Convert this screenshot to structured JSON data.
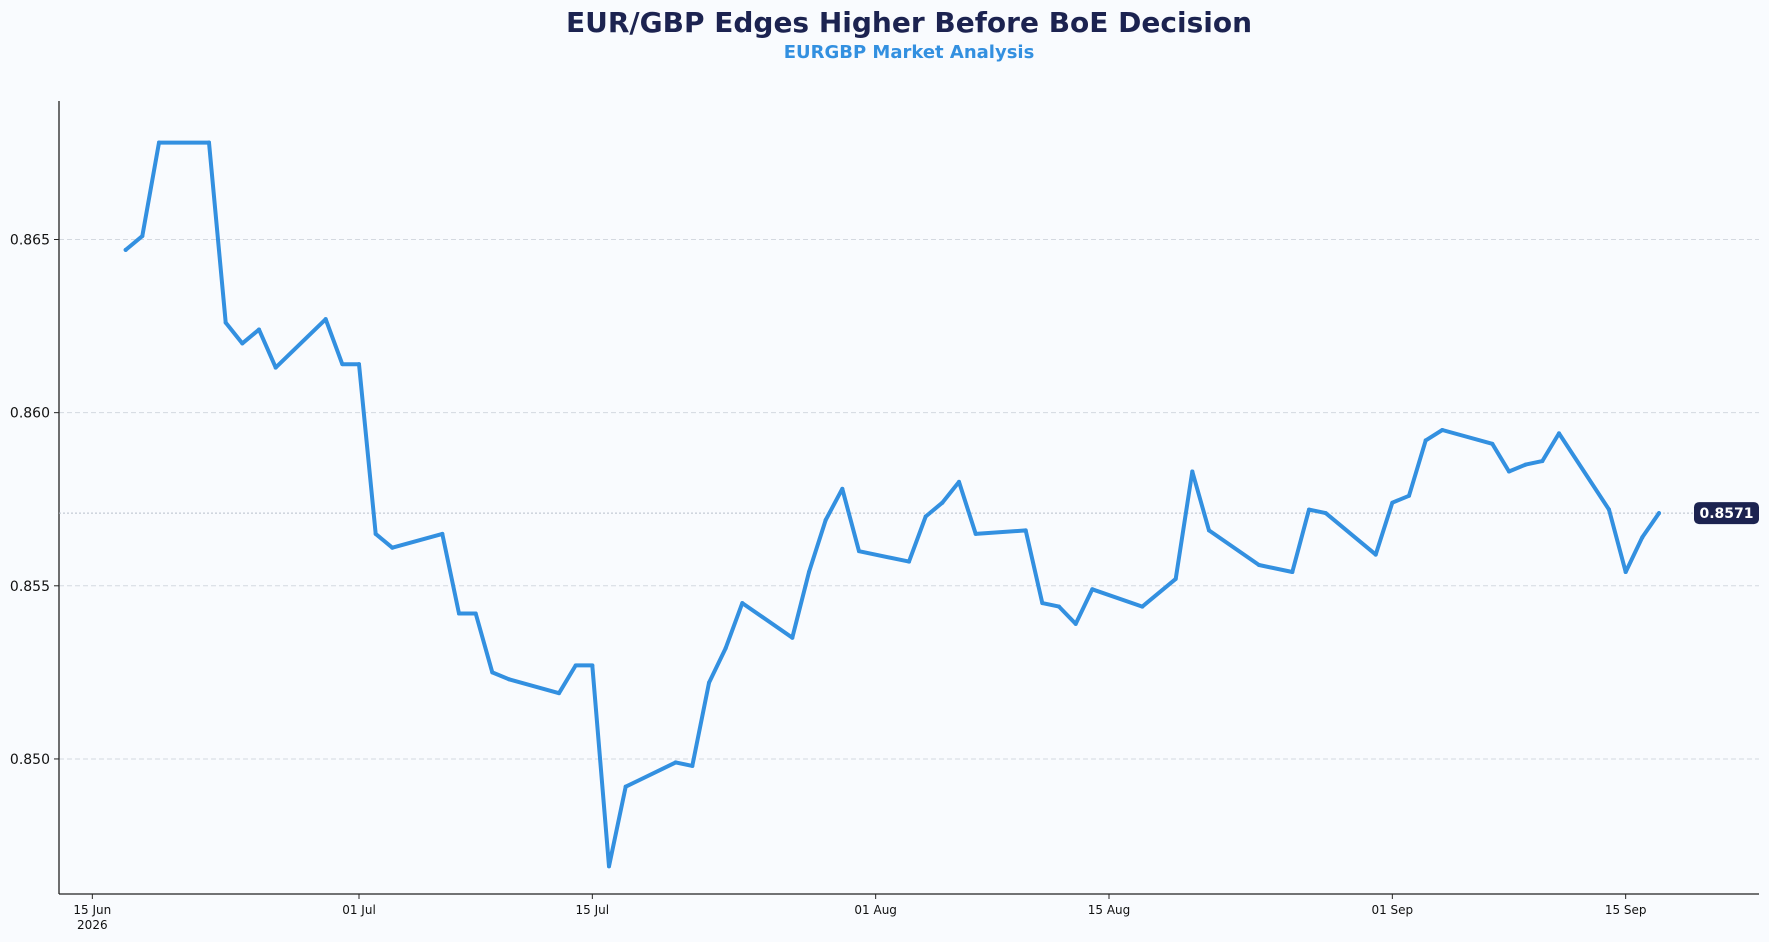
{
  "colors": {
    "background": "#f9fbfe",
    "title": "#1c2350",
    "subtitle": "#3390e0",
    "line": "#3390e0",
    "grid": "#d4d9e0",
    "axis": "#222222",
    "badge_bg": "#1c2350"
  },
  "chart_data": {
    "type": "line",
    "title": "EUR/GBP Edges Higher Before BoE Decision",
    "subtitle": "EURGBP Market Analysis",
    "xlabel": "",
    "ylabel": "",
    "grid": true,
    "x_range": [
      "2026-06-13",
      "2026-09-23"
    ],
    "ylim": [
      0.8461,
      0.869
    ],
    "yticks": [
      0.85,
      0.855,
      0.86,
      0.865
    ],
    "ytick_labels": [
      "0.850",
      "0.855",
      "0.860",
      "0.865"
    ],
    "xticks": [
      "2026-06-15",
      "2026-07-01",
      "2026-07-15",
      "2026-08-01",
      "2026-08-15",
      "2026-09-01",
      "2026-09-15"
    ],
    "xtick_labels": [
      {
        "line1": "15 Jun",
        "line2": "2026"
      },
      {
        "line1": "01 Jul",
        "line2": ""
      },
      {
        "line1": "15 Jul",
        "line2": ""
      },
      {
        "line1": "01 Aug",
        "line2": ""
      },
      {
        "line1": "15 Aug",
        "line2": ""
      },
      {
        "line1": "01 Sep",
        "line2": ""
      },
      {
        "line1": "15 Sep",
        "line2": ""
      }
    ],
    "last_value_label": "0.8571",
    "last_value": 0.8571,
    "series": [
      {
        "points": [
          [
            "2026-06-17",
            0.8647
          ],
          [
            "2026-06-18",
            0.8651
          ],
          [
            "2026-06-19",
            0.8678
          ],
          [
            "2026-06-22",
            0.8678
          ],
          [
            "2026-06-23",
            0.8626
          ],
          [
            "2026-06-24",
            0.862
          ],
          [
            "2026-06-25",
            0.8624
          ],
          [
            "2026-06-26",
            0.8613
          ],
          [
            "2026-06-29",
            0.8627
          ],
          [
            "2026-06-30",
            0.8614
          ],
          [
            "2026-07-01",
            0.8614
          ],
          [
            "2026-07-02",
            0.8565
          ],
          [
            "2026-07-03",
            0.8561
          ],
          [
            "2026-07-06",
            0.8565
          ],
          [
            "2026-07-07",
            0.8542
          ],
          [
            "2026-07-08",
            0.8542
          ],
          [
            "2026-07-09",
            0.8525
          ],
          [
            "2026-07-10",
            0.8523
          ],
          [
            "2026-07-13",
            0.8519
          ],
          [
            "2026-07-14",
            0.8527
          ],
          [
            "2026-07-15",
            0.8527
          ],
          [
            "2026-07-16",
            0.8469
          ],
          [
            "2026-07-17",
            0.8492
          ],
          [
            "2026-07-20",
            0.8499
          ],
          [
            "2026-07-21",
            0.8498
          ],
          [
            "2026-07-22",
            0.8522
          ],
          [
            "2026-07-23",
            0.8532
          ],
          [
            "2026-07-24",
            0.8545
          ],
          [
            "2026-07-27",
            0.8535
          ],
          [
            "2026-07-28",
            0.8554
          ],
          [
            "2026-07-29",
            0.8569
          ],
          [
            "2026-07-30",
            0.8578
          ],
          [
            "2026-07-31",
            0.856
          ],
          [
            "2026-08-03",
            0.8557
          ],
          [
            "2026-08-04",
            0.857
          ],
          [
            "2026-08-05",
            0.8574
          ],
          [
            "2026-08-06",
            0.858
          ],
          [
            "2026-08-07",
            0.8565
          ],
          [
            "2026-08-10",
            0.8566
          ],
          [
            "2026-08-11",
            0.8545
          ],
          [
            "2026-08-12",
            0.8544
          ],
          [
            "2026-08-13",
            0.8539
          ],
          [
            "2026-08-14",
            0.8549
          ],
          [
            "2026-08-17",
            0.8544
          ],
          [
            "2026-08-19",
            0.8552
          ],
          [
            "2026-08-20",
            0.8583
          ],
          [
            "2026-08-21",
            0.8566
          ],
          [
            "2026-08-24",
            0.8556
          ],
          [
            "2026-08-26",
            0.8554
          ],
          [
            "2026-08-27",
            0.8572
          ],
          [
            "2026-08-28",
            0.8571
          ],
          [
            "2026-08-31",
            0.8559
          ],
          [
            "2026-09-01",
            0.8574
          ],
          [
            "2026-09-02",
            0.8576
          ],
          [
            "2026-09-03",
            0.8592
          ],
          [
            "2026-09-04",
            0.8595
          ],
          [
            "2026-09-07",
            0.8591
          ],
          [
            "2026-09-08",
            0.8583
          ],
          [
            "2026-09-09",
            0.8585
          ],
          [
            "2026-09-10",
            0.8586
          ],
          [
            "2026-09-11",
            0.8594
          ],
          [
            "2026-09-14",
            0.8572
          ],
          [
            "2026-09-15",
            0.8554
          ],
          [
            "2026-09-16",
            0.8564
          ],
          [
            "2026-09-17",
            0.8571
          ]
        ]
      }
    ]
  }
}
